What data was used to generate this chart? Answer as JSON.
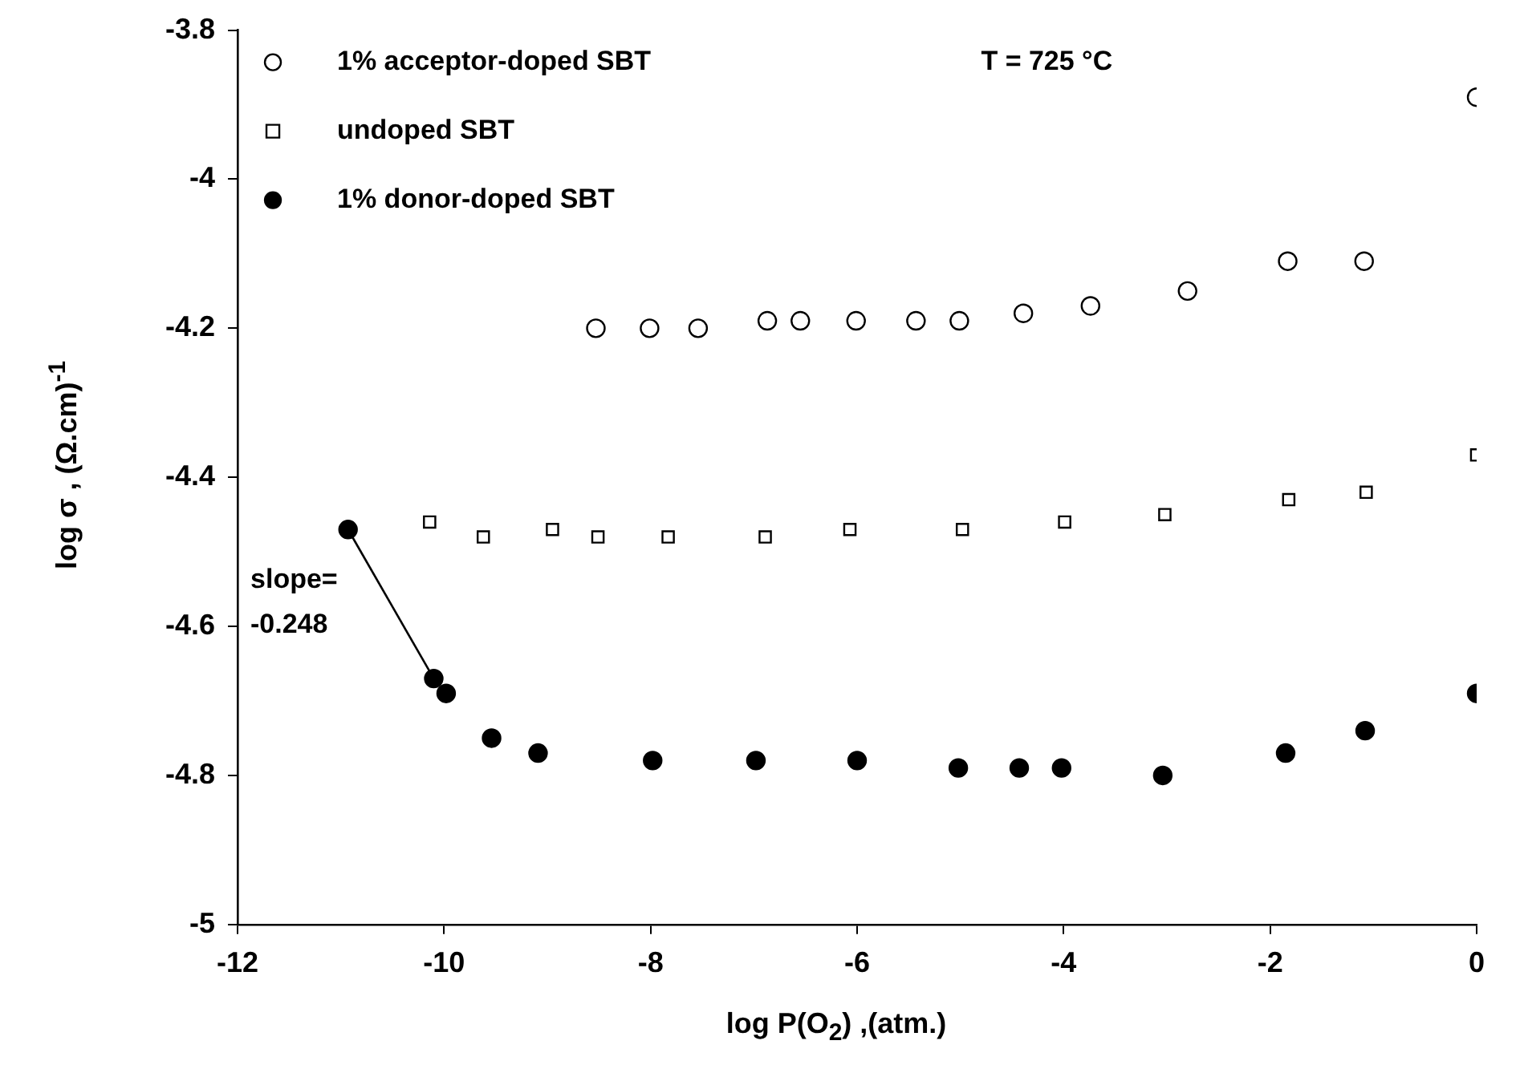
{
  "chart_data": {
    "type": "scatter",
    "xlabel": "log  P(O$_{2}$)  ,(atm.)",
    "ylabel": "log σ  ,  (Ω.cm)$^{-1}$",
    "xlim": [
      -12,
      0
    ],
    "xticks": [
      -12,
      -10,
      -8,
      -6,
      -4,
      -2,
      0
    ],
    "ylim": [
      -5,
      -3.8
    ],
    "yticks": [
      -5,
      -4.8,
      -4.6,
      -4.4,
      -4.2,
      -4,
      -3.8
    ],
    "grid": false,
    "legend": "top left",
    "annotations": [
      "T = 725 °C",
      "slope= -0.248"
    ],
    "series": [
      {
        "name": "1% acceptor-doped SBT",
        "color": "#000000",
        "marker": "circle-open",
        "x": [
          -8.53,
          -8.01,
          -7.54,
          -6.87,
          -6.55,
          -6.01,
          -5.43,
          -5.01,
          -4.39,
          -3.74,
          -2.8,
          -1.83,
          -1.09,
          0
        ],
        "values": [
          -4.2,
          -4.2,
          -4.2,
          -4.19,
          -4.19,
          -4.19,
          -4.19,
          -4.19,
          -4.18,
          -4.17,
          -4.15,
          -4.11,
          -4.11,
          -3.89
        ]
      },
      {
        "name": "undoped SBT",
        "color": "#000000",
        "marker": "square-open",
        "x": [
          -10.14,
          -9.62,
          -8.95,
          -8.51,
          -7.83,
          -6.89,
          -6.07,
          -4.98,
          -3.99,
          -3.02,
          -1.82,
          -1.07,
          0
        ],
        "values": [
          -4.46,
          -4.48,
          -4.47,
          -4.48,
          -4.48,
          -4.48,
          -4.47,
          -4.47,
          -4.46,
          -4.45,
          -4.43,
          -4.42,
          -4.37
        ]
      },
      {
        "name": "1% donor-doped SBT",
        "color": "#000000",
        "marker": "circle",
        "x": [
          -10.93,
          -10.1,
          -9.98,
          -9.54,
          -9.09,
          -7.98,
          -6.98,
          -6.0,
          -5.02,
          -4.43,
          -4.02,
          -3.04,
          -1.85,
          -1.08,
          0
        ],
        "values": [
          -4.47,
          -4.67,
          -4.69,
          -4.75,
          -4.77,
          -4.78,
          -4.78,
          -4.78,
          -4.79,
          -4.79,
          -4.79,
          -4.8,
          -4.77,
          -4.74,
          -4.69
        ]
      },
      {
        "type": "line",
        "color": "#000000",
        "marker": "none",
        "x": [
          -10.93,
          -10.1
        ],
        "values": [
          -4.47,
          -4.67
        ]
      }
    ]
  }
}
